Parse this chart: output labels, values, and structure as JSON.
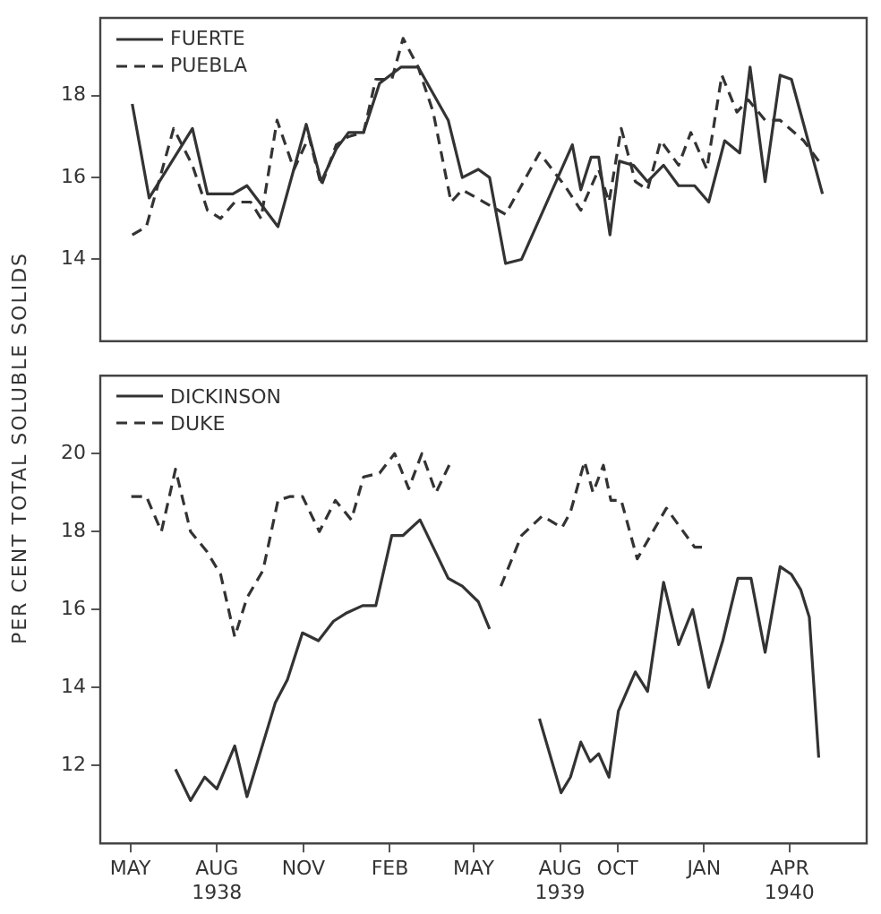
{
  "chart_data": [
    {
      "type": "line",
      "ylabel": "PER CENT TOTAL SOLUBLE SOLIDS",
      "xlim": [
        "1938-03-30",
        "1940-06-22"
      ],
      "ylim": [
        12,
        19.9
      ],
      "yticks": [
        14,
        16,
        18
      ],
      "tick_labels": "y",
      "legend": "top left",
      "marker": "none",
      "series": [
        {
          "name": "FUERTE",
          "color": "#333333",
          "line_style": "solid",
          "x": [
            "1938-05-03",
            "1938-05-21",
            "1938-07-06",
            "1938-07-22",
            "1938-08-18",
            "1938-09-02",
            "1938-10-05",
            "1938-11-04",
            "1938-11-20",
            "1938-12-06",
            "1938-12-19",
            "1939-01-04",
            "1939-01-21",
            "1939-02-13",
            "1939-03-03",
            "1939-04-04",
            "1939-04-19",
            "1939-05-06",
            "1939-05-18",
            "1939-06-04",
            "1939-06-21",
            "1939-08-14",
            "1939-08-23",
            "1939-09-03",
            "1939-09-11",
            "1939-09-23",
            "1939-10-03",
            "1939-10-18",
            "1939-11-02",
            "1939-11-19",
            "1939-12-05",
            "1939-12-22",
            "1940-01-06",
            "1940-01-23",
            "1940-02-08",
            "1940-02-19",
            "1940-03-06",
            "1940-03-22",
            "1940-04-03",
            "1940-04-16",
            "1940-05-06"
          ],
          "values": [
            17.8,
            15.5,
            17.2,
            15.6,
            15.6,
            15.8,
            14.8,
            17.3,
            15.9,
            16.7,
            17.1,
            17.1,
            18.3,
            18.7,
            18.7,
            17.4,
            16,
            16.2,
            16,
            13.9,
            14,
            16.8,
            15.7,
            16.5,
            16.5,
            14.6,
            16.4,
            16.3,
            15.9,
            16.3,
            15.8,
            15.8,
            15.4,
            16.9,
            16.6,
            18.7,
            15.9,
            18.5,
            18.4,
            17.3,
            15.6
          ]
        },
        {
          "name": "PUEBLA",
          "color": "#333333",
          "line_style": "dashed",
          "x": [
            "1938-05-03",
            "1938-05-18",
            "1938-06-16",
            "1938-07-06",
            "1938-07-22",
            "1938-08-05",
            "1938-08-20",
            "1938-09-06",
            "1938-09-17",
            "1938-10-04",
            "1938-10-22",
            "1938-11-07",
            "1938-11-20",
            "1938-12-06",
            "1938-12-19",
            "1939-01-04",
            "1939-01-17",
            "1939-02-03",
            "1939-02-15",
            "1939-03-03",
            "1939-03-19",
            "1939-04-07",
            "1939-04-19",
            "1939-05-12",
            "1939-06-04",
            "1939-07-10",
            "1939-08-06",
            "1939-08-23",
            "1939-09-11",
            "1939-09-22",
            "1939-10-05",
            "1939-10-20",
            "1939-11-02",
            "1939-11-16",
            "1939-12-05",
            "1939-12-18",
            "1940-01-04",
            "1940-01-20",
            "1940-02-05",
            "1940-02-17",
            "1940-03-06",
            "1940-03-22",
            "1940-04-16",
            "1940-05-02"
          ],
          "values": [
            14.6,
            14.8,
            17.2,
            16.3,
            15.2,
            15,
            15.4,
            15.4,
            15,
            17.4,
            16.2,
            17,
            15.8,
            16.8,
            17,
            17.1,
            18.4,
            18.4,
            19.4,
            18.7,
            17.6,
            15.4,
            15.7,
            15.4,
            15.1,
            16.6,
            15.8,
            15.2,
            16.2,
            15.4,
            17.2,
            15.9,
            15.7,
            16.9,
            16.3,
            17.1,
            16.2,
            18.5,
            17.6,
            17.9,
            17.4,
            17.4,
            16.9,
            16.4
          ]
        }
      ]
    },
    {
      "type": "line",
      "xlim": [
        "1938-03-30",
        "1940-06-22"
      ],
      "xticks": [
        {
          "value": "1938-05",
          "label": "MAY"
        },
        {
          "value": "1938-08",
          "label": "AUG\n1938"
        },
        {
          "value": "1938-11",
          "label": "NOV"
        },
        {
          "value": "1939-02",
          "label": "FEB"
        },
        {
          "value": "1939-05",
          "label": "MAY"
        },
        {
          "value": "1939-08",
          "label": "AUG\n1939"
        },
        {
          "value": "1939-10",
          "label": "OCT"
        },
        {
          "value": "1940-01",
          "label": "JAN"
        },
        {
          "value": "1940-04",
          "label": "APR\n1940"
        }
      ],
      "ylim": [
        10,
        22
      ],
      "yticks": [
        12,
        14,
        16,
        18,
        20
      ],
      "legend": "top left",
      "marker": "none",
      "series": [
        {
          "name": "DICKINSON",
          "color": "#333333",
          "line_style": "solid",
          "x": [
            "1938-06-18",
            "1938-07-04",
            "1938-07-19",
            "1938-08-01",
            "1938-08-20",
            "1938-09-02",
            "1938-10-02",
            "1938-10-15",
            "1938-10-31",
            "1938-11-17",
            "1938-12-03",
            "1938-12-16",
            "1939-01-03",
            "1939-01-17",
            "1939-02-03",
            "1939-02-15",
            "1939-03-05",
            "1939-04-04",
            "1939-04-19",
            "1939-05-06",
            "1939-05-18",
            "1939-06-14",
            "1939-07-10",
            "1939-08-02",
            "1939-08-12",
            "1939-08-23",
            "1939-09-02",
            "1939-09-11",
            "1939-09-22",
            "1939-10-02",
            "1939-10-20",
            "1939-11-02",
            "1939-11-19",
            "1939-12-05",
            "1939-12-20",
            "1940-01-06",
            "1940-01-21",
            "1940-02-06",
            "1940-02-20",
            "1940-03-06",
            "1940-03-22",
            "1940-04-03",
            "1940-04-13",
            "1940-04-22",
            "1940-05-02"
          ],
          "values": [
            11.9,
            11.1,
            11.7,
            11.4,
            12.5,
            11.2,
            13.6,
            14.2,
            15.4,
            15.2,
            15.7,
            15.9,
            16.1,
            16.1,
            17.9,
            17.9,
            18.3,
            16.8,
            16.6,
            16.2,
            15.5,
            null,
            13.2,
            11.3,
            11.7,
            12.6,
            12.1,
            12.3,
            11.7,
            13.4,
            14.4,
            13.9,
            16.7,
            15.1,
            16,
            14,
            15.2,
            16.8,
            16.8,
            14.9,
            17.1,
            16.9,
            16.5,
            15.8,
            12.2
          ]
        },
        {
          "name": "DUKE",
          "color": "#333333",
          "line_style": "dashed",
          "x": [
            "1938-05-02",
            "1938-05-18",
            "1938-06-03",
            "1938-06-18",
            "1938-07-04",
            "1938-07-21",
            "1938-08-05",
            "1938-08-20",
            "1938-09-02",
            "1938-09-19",
            "1938-10-05",
            "1938-10-18",
            "1938-10-31",
            "1938-11-18",
            "1938-12-05",
            "1938-12-22",
            "1939-01-04",
            "1939-01-21",
            "1939-02-06",
            "1939-02-21",
            "1939-03-07",
            "1939-03-22",
            "1939-04-07",
            "1939-05-03",
            "1939-05-30",
            "1939-06-21",
            "1939-07-13",
            "1939-08-03",
            "1939-08-12",
            "1939-08-27",
            "1939-09-05",
            "1939-09-16",
            "1939-09-24",
            "1939-10-05",
            "1939-10-22",
            "1939-11-22",
            "1939-12-22",
            "1940-01-04"
          ],
          "values": [
            18.9,
            18.9,
            18,
            19.6,
            18,
            17.5,
            16.9,
            15.3,
            16.3,
            17,
            18.8,
            18.9,
            18.9,
            18,
            18.8,
            18.3,
            19.4,
            19.5,
            20,
            19.1,
            20,
            19,
            19.8,
            null,
            16.6,
            17.9,
            18.4,
            18.1,
            18.5,
            19.8,
            19,
            19.7,
            18.8,
            18.8,
            17.3,
            18.6,
            17.6,
            17.6
          ]
        }
      ]
    }
  ]
}
